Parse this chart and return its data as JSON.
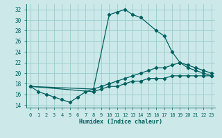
{
  "xlabel": "Humidex (Indice chaleur)",
  "xlim": [
    -0.5,
    23.5
  ],
  "ylim": [
    13.5,
    33
  ],
  "yticks": [
    14,
    16,
    18,
    20,
    22,
    24,
    26,
    28,
    30,
    32
  ],
  "xticks": [
    0,
    1,
    2,
    3,
    4,
    5,
    6,
    7,
    8,
    9,
    10,
    11,
    12,
    13,
    14,
    15,
    16,
    17,
    18,
    19,
    20,
    21,
    22,
    23
  ],
  "bg_color": "#cce8e8",
  "grid_color": "#99cccc",
  "line_color": "#006060",
  "curve1_x": [
    0,
    1,
    2,
    3,
    4,
    5,
    6,
    7,
    8,
    10,
    11,
    12,
    13,
    14,
    16,
    17,
    18,
    19,
    20,
    21,
    22,
    23
  ],
  "curve1_y": [
    17.5,
    16.5,
    16.0,
    15.5,
    15.0,
    14.5,
    15.5,
    16.5,
    17.0,
    31.0,
    31.5,
    32.0,
    31.0,
    30.5,
    28.0,
    27.0,
    24.0,
    22.0,
    21.0,
    20.5,
    20.0,
    19.5
  ],
  "curve2_x": [
    0,
    8,
    9,
    10,
    11,
    12,
    13,
    14,
    15,
    16,
    17,
    18,
    19,
    20,
    21,
    22,
    23
  ],
  "curve2_y": [
    17.5,
    17.0,
    17.5,
    18.0,
    18.5,
    19.0,
    19.5,
    20.0,
    20.5,
    21.0,
    21.0,
    21.5,
    22.0,
    21.5,
    21.0,
    20.5,
    20.0
  ],
  "curve3_x": [
    0,
    8,
    9,
    10,
    11,
    12,
    13,
    14,
    15,
    16,
    17,
    18,
    19,
    20,
    21,
    22,
    23
  ],
  "curve3_y": [
    17.5,
    16.5,
    17.0,
    17.5,
    17.5,
    18.0,
    18.5,
    18.5,
    19.0,
    19.0,
    19.0,
    19.5,
    19.5,
    19.5,
    19.5,
    19.5,
    19.5
  ]
}
